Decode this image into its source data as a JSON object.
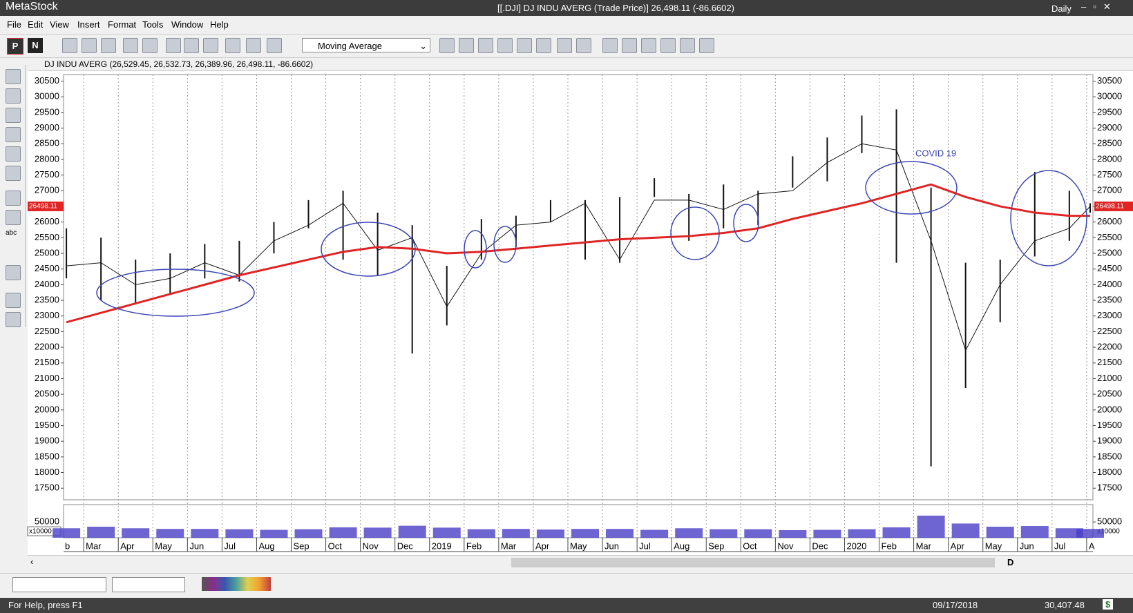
{
  "window": {
    "app": "MetaStock",
    "title": "[[.DJI] DJ INDU AVERG (Trade Price)]  26,498.11 (-86.6602)",
    "periodicity": "Daily"
  },
  "menu": [
    "File",
    "Edit",
    "View",
    "Insert",
    "Format",
    "Tools",
    "Window",
    "Help"
  ],
  "toolbar": {
    "buttons": [
      "P",
      "N"
    ],
    "indicator": "Moving Average"
  },
  "left_toolbar": {
    "text_tool": "abc"
  },
  "chart_data": {
    "type": "ohlc",
    "title": "DJ INDU AVERG (26,529.45, 26,532.73, 26,389.96, 26,498.11, -86.6602)",
    "categories": [
      "b",
      "Mar",
      "Apr",
      "May",
      "Jun",
      "Jul",
      "Aug",
      "Sep",
      "Oct",
      "Nov",
      "Dec",
      "2019",
      "Feb",
      "Mar",
      "Apr",
      "May",
      "Jun",
      "Jul",
      "Aug",
      "Sep",
      "Oct",
      "Nov",
      "Dec",
      "2020",
      "Feb",
      "Mar",
      "Apr",
      "May",
      "Jun",
      "Jul",
      "A"
    ],
    "close": [
      24600,
      24700,
      24000,
      24200,
      24700,
      24300,
      25400,
      25900,
      26600,
      25100,
      25500,
      23300,
      25000,
      25900,
      26000,
      26600,
      24800,
      26700,
      26700,
      26400,
      26900,
      27000,
      27900,
      28500,
      28300,
      25400,
      21900,
      24000,
      25400,
      25800,
      26500
    ],
    "high": [
      25800,
      25500,
      24800,
      25000,
      25300,
      25400,
      26000,
      26700,
      27000,
      26300,
      25900,
      24600,
      26100,
      26200,
      26700,
      26700,
      26800,
      27400,
      26900,
      27200,
      27000,
      28100,
      28700,
      29400,
      29600,
      27100,
      24700,
      24800,
      27600,
      27000,
      26600
    ],
    "low": [
      24200,
      23500,
      23400,
      23700,
      24200,
      24100,
      25000,
      25800,
      24800,
      24300,
      21800,
      22700,
      24800,
      25200,
      26000,
      24800,
      24700,
      26800,
      25400,
      25800,
      25900,
      27100,
      27300,
      28200,
      24700,
      18200,
      20700,
      22800,
      24900,
      25400,
      26300
    ],
    "moving_average": [
      22800,
      23100,
      23400,
      23700,
      24000,
      24300,
      24550,
      24800,
      25050,
      25200,
      25150,
      25000,
      25050,
      25150,
      25250,
      25350,
      25450,
      25500,
      25550,
      25650,
      25800,
      26100,
      26350,
      26600,
      26900,
      27200,
      26800,
      26500,
      26300,
      26200,
      26200
    ],
    "volume": [
      30000,
      35000,
      30000,
      28000,
      28000,
      27000,
      25000,
      27000,
      33000,
      32000,
      38000,
      32000,
      27000,
      28000,
      26000,
      28000,
      28000,
      25000,
      30000,
      27000,
      27000,
      24000,
      25000,
      27000,
      33000,
      70000,
      45000,
      35000,
      37000,
      30000,
      28000
    ],
    "price_color": "#111111",
    "ma_color": "#e02424",
    "volume_color": "#4a3fc8",
    "ylim": [
      17130,
      30710
    ],
    "yticks": [
      17500,
      18000,
      18500,
      19000,
      19500,
      20000,
      20500,
      21000,
      21500,
      22000,
      22500,
      23000,
      23500,
      24000,
      24500,
      25000,
      25500,
      26000,
      26500,
      27000,
      27500,
      28000,
      28500,
      29000,
      29500,
      30000,
      30500
    ],
    "volume_ylim": [
      0,
      104760
    ],
    "volume_yticks": [
      50000
    ],
    "volume_unit": "x10000",
    "last_price_label": "26498.11",
    "annotation": "COVID 19",
    "annotation_color": "#3b46b4"
  },
  "navigation": {
    "period_button": "D"
  },
  "status": {
    "help": "For Help, press F1",
    "date": "09/17/2018",
    "value": "30,407.48",
    "currency": "$"
  }
}
